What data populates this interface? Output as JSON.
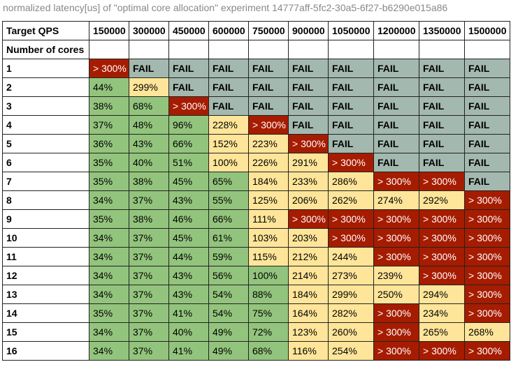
{
  "caption": "normalized latency[us] of \"optimal core allocation\" experiment 14777aff-5fc2-30a5-6f27-b6290e015a86",
  "colors": {
    "good": "#93c47d",
    "warn": "#ffe599",
    "over": "#a61c00",
    "fail": "#a3b8ae",
    "border": "#222222",
    "caption": "#888888"
  },
  "chart_data": {
    "type": "table",
    "title": "normalized latency[us] of \"optimal core allocation\" experiment 14777aff-5fc2-30a5-6f27-b6290e015a86",
    "corner_header": "Target QPS",
    "row_header": "Number of cores",
    "columns": [
      "150000",
      "300000",
      "450000",
      "600000",
      "750000",
      "900000",
      "1050000",
      "1200000",
      "1350000",
      "1500000"
    ],
    "rows": [
      {
        "label": "1",
        "cells": [
          {
            "text": "> 300%",
            "status": "over"
          },
          {
            "text": "FAIL",
            "status": "fail"
          },
          {
            "text": "FAIL",
            "status": "fail"
          },
          {
            "text": "FAIL",
            "status": "fail"
          },
          {
            "text": "FAIL",
            "status": "fail"
          },
          {
            "text": "FAIL",
            "status": "fail"
          },
          {
            "text": "FAIL",
            "status": "fail"
          },
          {
            "text": "FAIL",
            "status": "fail"
          },
          {
            "text": "FAIL",
            "status": "fail"
          },
          {
            "text": "FAIL",
            "status": "fail"
          }
        ]
      },
      {
        "label": "2",
        "cells": [
          {
            "text": "44%",
            "status": "good"
          },
          {
            "text": "299%",
            "status": "warn"
          },
          {
            "text": "FAIL",
            "status": "fail"
          },
          {
            "text": "FAIL",
            "status": "fail"
          },
          {
            "text": "FAIL",
            "status": "fail"
          },
          {
            "text": "FAIL",
            "status": "fail"
          },
          {
            "text": "FAIL",
            "status": "fail"
          },
          {
            "text": "FAIL",
            "status": "fail"
          },
          {
            "text": "FAIL",
            "status": "fail"
          },
          {
            "text": "FAIL",
            "status": "fail"
          }
        ]
      },
      {
        "label": "3",
        "cells": [
          {
            "text": "38%",
            "status": "good"
          },
          {
            "text": "68%",
            "status": "good"
          },
          {
            "text": "> 300%",
            "status": "over"
          },
          {
            "text": "FAIL",
            "status": "fail"
          },
          {
            "text": "FAIL",
            "status": "fail"
          },
          {
            "text": "FAIL",
            "status": "fail"
          },
          {
            "text": "FAIL",
            "status": "fail"
          },
          {
            "text": "FAIL",
            "status": "fail"
          },
          {
            "text": "FAIL",
            "status": "fail"
          },
          {
            "text": "FAIL",
            "status": "fail"
          }
        ]
      },
      {
        "label": "4",
        "cells": [
          {
            "text": "37%",
            "status": "good"
          },
          {
            "text": "48%",
            "status": "good"
          },
          {
            "text": "96%",
            "status": "good"
          },
          {
            "text": "228%",
            "status": "warn"
          },
          {
            "text": "> 300%",
            "status": "over"
          },
          {
            "text": "FAIL",
            "status": "fail"
          },
          {
            "text": "FAIL",
            "status": "fail"
          },
          {
            "text": "FAIL",
            "status": "fail"
          },
          {
            "text": "FAIL",
            "status": "fail"
          },
          {
            "text": "FAIL",
            "status": "fail"
          }
        ]
      },
      {
        "label": "5",
        "cells": [
          {
            "text": "36%",
            "status": "good"
          },
          {
            "text": "43%",
            "status": "good"
          },
          {
            "text": "66%",
            "status": "good"
          },
          {
            "text": "152%",
            "status": "warn"
          },
          {
            "text": "223%",
            "status": "warn"
          },
          {
            "text": "> 300%",
            "status": "over"
          },
          {
            "text": "FAIL",
            "status": "fail"
          },
          {
            "text": "FAIL",
            "status": "fail"
          },
          {
            "text": "FAIL",
            "status": "fail"
          },
          {
            "text": "FAIL",
            "status": "fail"
          }
        ]
      },
      {
        "label": "6",
        "cells": [
          {
            "text": "35%",
            "status": "good"
          },
          {
            "text": "40%",
            "status": "good"
          },
          {
            "text": "51%",
            "status": "good"
          },
          {
            "text": "100%",
            "status": "warn"
          },
          {
            "text": "226%",
            "status": "warn"
          },
          {
            "text": "291%",
            "status": "warn"
          },
          {
            "text": "> 300%",
            "status": "over"
          },
          {
            "text": "FAIL",
            "status": "fail"
          },
          {
            "text": "FAIL",
            "status": "fail"
          },
          {
            "text": "FAIL",
            "status": "fail"
          }
        ]
      },
      {
        "label": "7",
        "cells": [
          {
            "text": "35%",
            "status": "good"
          },
          {
            "text": "38%",
            "status": "good"
          },
          {
            "text": "45%",
            "status": "good"
          },
          {
            "text": "65%",
            "status": "good"
          },
          {
            "text": "184%",
            "status": "warn"
          },
          {
            "text": "233%",
            "status": "warn"
          },
          {
            "text": "286%",
            "status": "warn"
          },
          {
            "text": "> 300%",
            "status": "over"
          },
          {
            "text": "> 300%",
            "status": "over"
          },
          {
            "text": "FAIL",
            "status": "fail"
          }
        ]
      },
      {
        "label": "8",
        "cells": [
          {
            "text": "34%",
            "status": "good"
          },
          {
            "text": "37%",
            "status": "good"
          },
          {
            "text": "43%",
            "status": "good"
          },
          {
            "text": "55%",
            "status": "good"
          },
          {
            "text": "125%",
            "status": "warn"
          },
          {
            "text": "206%",
            "status": "warn"
          },
          {
            "text": "262%",
            "status": "warn"
          },
          {
            "text": "274%",
            "status": "warn"
          },
          {
            "text": "292%",
            "status": "warn"
          },
          {
            "text": "> 300%",
            "status": "over"
          }
        ]
      },
      {
        "label": "9",
        "cells": [
          {
            "text": "35%",
            "status": "good"
          },
          {
            "text": "38%",
            "status": "good"
          },
          {
            "text": "46%",
            "status": "good"
          },
          {
            "text": "66%",
            "status": "good"
          },
          {
            "text": "111%",
            "status": "warn"
          },
          {
            "text": "> 300%",
            "status": "over"
          },
          {
            "text": "> 300%",
            "status": "over"
          },
          {
            "text": "> 300%",
            "status": "over"
          },
          {
            "text": "> 300%",
            "status": "over"
          },
          {
            "text": "> 300%",
            "status": "over"
          }
        ]
      },
      {
        "label": "10",
        "cells": [
          {
            "text": "34%",
            "status": "good"
          },
          {
            "text": "37%",
            "status": "good"
          },
          {
            "text": "45%",
            "status": "good"
          },
          {
            "text": "61%",
            "status": "good"
          },
          {
            "text": "103%",
            "status": "warn"
          },
          {
            "text": "203%",
            "status": "warn"
          },
          {
            "text": "> 300%",
            "status": "over"
          },
          {
            "text": "> 300%",
            "status": "over"
          },
          {
            "text": "> 300%",
            "status": "over"
          },
          {
            "text": "> 300%",
            "status": "over"
          }
        ]
      },
      {
        "label": "11",
        "cells": [
          {
            "text": "34%",
            "status": "good"
          },
          {
            "text": "37%",
            "status": "good"
          },
          {
            "text": "44%",
            "status": "good"
          },
          {
            "text": "59%",
            "status": "good"
          },
          {
            "text": "115%",
            "status": "warn"
          },
          {
            "text": "212%",
            "status": "warn"
          },
          {
            "text": "244%",
            "status": "warn"
          },
          {
            "text": "> 300%",
            "status": "over"
          },
          {
            "text": "> 300%",
            "status": "over"
          },
          {
            "text": "> 300%",
            "status": "over"
          }
        ]
      },
      {
        "label": "12",
        "cells": [
          {
            "text": "34%",
            "status": "good"
          },
          {
            "text": "37%",
            "status": "good"
          },
          {
            "text": "43%",
            "status": "good"
          },
          {
            "text": "56%",
            "status": "good"
          },
          {
            "text": "100%",
            "status": "good"
          },
          {
            "text": "214%",
            "status": "warn"
          },
          {
            "text": "273%",
            "status": "warn"
          },
          {
            "text": "239%",
            "status": "warn"
          },
          {
            "text": "> 300%",
            "status": "over"
          },
          {
            "text": "> 300%",
            "status": "over"
          }
        ]
      },
      {
        "label": "13",
        "cells": [
          {
            "text": "34%",
            "status": "good"
          },
          {
            "text": "37%",
            "status": "good"
          },
          {
            "text": "43%",
            "status": "good"
          },
          {
            "text": "54%",
            "status": "good"
          },
          {
            "text": "88%",
            "status": "good"
          },
          {
            "text": "184%",
            "status": "warn"
          },
          {
            "text": "299%",
            "status": "warn"
          },
          {
            "text": "250%",
            "status": "warn"
          },
          {
            "text": "294%",
            "status": "warn"
          },
          {
            "text": "> 300%",
            "status": "over"
          }
        ]
      },
      {
        "label": "14",
        "cells": [
          {
            "text": "35%",
            "status": "good"
          },
          {
            "text": "37%",
            "status": "good"
          },
          {
            "text": "41%",
            "status": "good"
          },
          {
            "text": "54%",
            "status": "good"
          },
          {
            "text": "75%",
            "status": "good"
          },
          {
            "text": "164%",
            "status": "warn"
          },
          {
            "text": "282%",
            "status": "warn"
          },
          {
            "text": "> 300%",
            "status": "over"
          },
          {
            "text": "234%",
            "status": "warn"
          },
          {
            "text": "> 300%",
            "status": "over"
          }
        ]
      },
      {
        "label": "15",
        "cells": [
          {
            "text": "34%",
            "status": "good"
          },
          {
            "text": "37%",
            "status": "good"
          },
          {
            "text": "40%",
            "status": "good"
          },
          {
            "text": "49%",
            "status": "good"
          },
          {
            "text": "72%",
            "status": "good"
          },
          {
            "text": "123%",
            "status": "warn"
          },
          {
            "text": "260%",
            "status": "warn"
          },
          {
            "text": "> 300%",
            "status": "over"
          },
          {
            "text": "265%",
            "status": "warn"
          },
          {
            "text": "268%",
            "status": "warn"
          }
        ]
      },
      {
        "label": "16",
        "cells": [
          {
            "text": "34%",
            "status": "good"
          },
          {
            "text": "37%",
            "status": "good"
          },
          {
            "text": "41%",
            "status": "good"
          },
          {
            "text": "49%",
            "status": "good"
          },
          {
            "text": "68%",
            "status": "good"
          },
          {
            "text": "116%",
            "status": "warn"
          },
          {
            "text": "254%",
            "status": "warn"
          },
          {
            "text": "> 300%",
            "status": "over"
          },
          {
            "text": "> 300%",
            "status": "over"
          },
          {
            "text": "> 300%",
            "status": "over"
          }
        ]
      }
    ]
  }
}
